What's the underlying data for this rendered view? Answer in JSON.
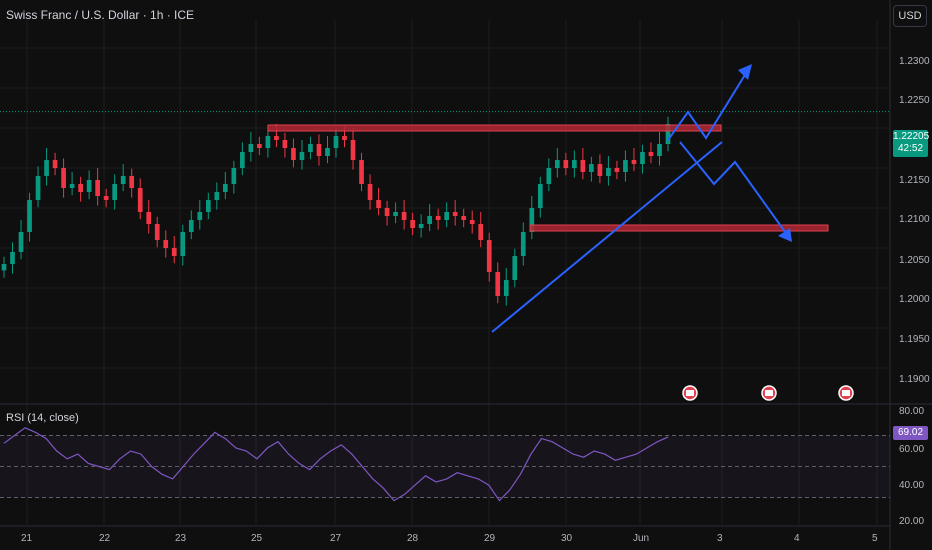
{
  "header": {
    "symbol_title": "Swiss Franc / U.S. Dollar · 1h · ICE",
    "currency_button": "USD"
  },
  "price_axis": {
    "labels": [
      "1.2300",
      "1.2250",
      "1.2150",
      "1.2100",
      "1.2050",
      "1.2000",
      "1.1950",
      "1.1900"
    ],
    "current_price": "1.22205",
    "countdown": "42:52"
  },
  "rsi_panel": {
    "title": "RSI (14, close)",
    "axis_labels": [
      "80.00",
      "60.00",
      "40.00",
      "20.00"
    ],
    "current_value": "69.02"
  },
  "time_axis": {
    "labels": [
      "21",
      "22",
      "23",
      "25",
      "27",
      "28",
      "29",
      "30",
      "Jun",
      "3",
      "4",
      "5"
    ]
  },
  "colors": {
    "background": "#0f0f0f",
    "up_candle": "#089981",
    "down_candle": "#f23645",
    "rsi_line": "#7e57c2",
    "drawing_blue": "#2962ff",
    "zone_red": "#b22833"
  },
  "chart_data": {
    "type": "candlestick",
    "price_range": [
      1.186,
      1.2335
    ],
    "rsi_range": [
      20,
      80
    ],
    "current_price": 1.22205,
    "resistance_zone": 1.22,
    "support_zone": 1.2075,
    "rsi_current": 69.02,
    "series_close": [
      1.203,
      1.2045,
      1.207,
      1.211,
      1.214,
      1.216,
      1.215,
      1.2125,
      1.213,
      1.212,
      1.2135,
      1.2115,
      1.211,
      1.213,
      1.214,
      1.2125,
      1.2095,
      1.208,
      1.206,
      1.205,
      1.204,
      1.207,
      1.2085,
      1.2095,
      1.211,
      1.212,
      1.213,
      1.215,
      1.217,
      1.218,
      1.2175,
      1.219,
      1.2185,
      1.2175,
      1.216,
      1.217,
      1.218,
      1.2165,
      1.2175,
      1.219,
      1.2185,
      1.216,
      1.213,
      1.211,
      1.21,
      1.209,
      1.2095,
      1.2085,
      1.2075,
      1.208,
      1.209,
      1.2085,
      1.2095,
      1.209,
      1.2085,
      1.208,
      1.206,
      1.202,
      1.199,
      1.201,
      1.204,
      1.207,
      1.21,
      1.213,
      1.215,
      1.216,
      1.215,
      1.216,
      1.2145,
      1.2155,
      1.214,
      1.215,
      1.2145,
      1.216,
      1.2155,
      1.217,
      1.2165,
      1.218,
      1.2205
    ],
    "rsi_values": [
      65,
      70,
      75,
      72,
      68,
      60,
      55,
      58,
      52,
      50,
      48,
      55,
      60,
      58,
      50,
      45,
      42,
      50,
      58,
      65,
      72,
      68,
      62,
      60,
      55,
      62,
      66,
      58,
      52,
      48,
      55,
      60,
      64,
      58,
      50,
      42,
      36,
      28,
      32,
      38,
      44,
      40,
      42,
      46,
      44,
      42,
      38,
      28,
      35,
      45,
      58,
      68,
      66,
      62,
      58,
      56,
      60,
      58,
      54,
      56,
      58,
      62,
      66,
      69
    ]
  }
}
